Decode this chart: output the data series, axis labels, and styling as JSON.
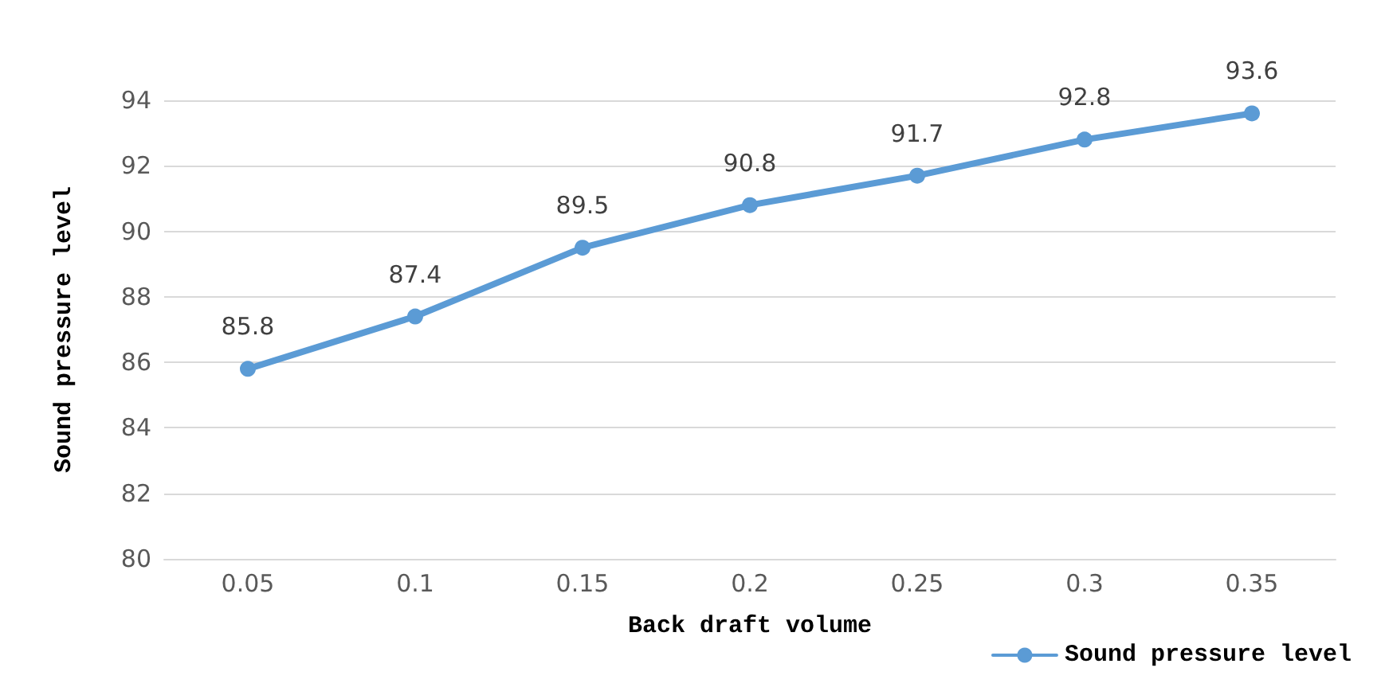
{
  "chart_data": {
    "type": "line",
    "xlabel": "Back draft volume",
    "ylabel": "Sound pressure level",
    "categories": [
      "0.05",
      "0.1",
      "0.15",
      "0.2",
      "0.25",
      "0.3",
      "0.35"
    ],
    "series": [
      {
        "name": "Sound pressure level",
        "color": "#5b9bd5",
        "values": [
          85.8,
          87.4,
          89.5,
          90.8,
          91.7,
          92.8,
          93.6
        ]
      }
    ],
    "ylim": [
      80,
      94
    ],
    "yticks": [
      80,
      82,
      84,
      86,
      88,
      90,
      92,
      94
    ],
    "grid": "y",
    "legend": "bottom right",
    "marker": "circle",
    "line_style": "solid",
    "data_labels": true
  }
}
